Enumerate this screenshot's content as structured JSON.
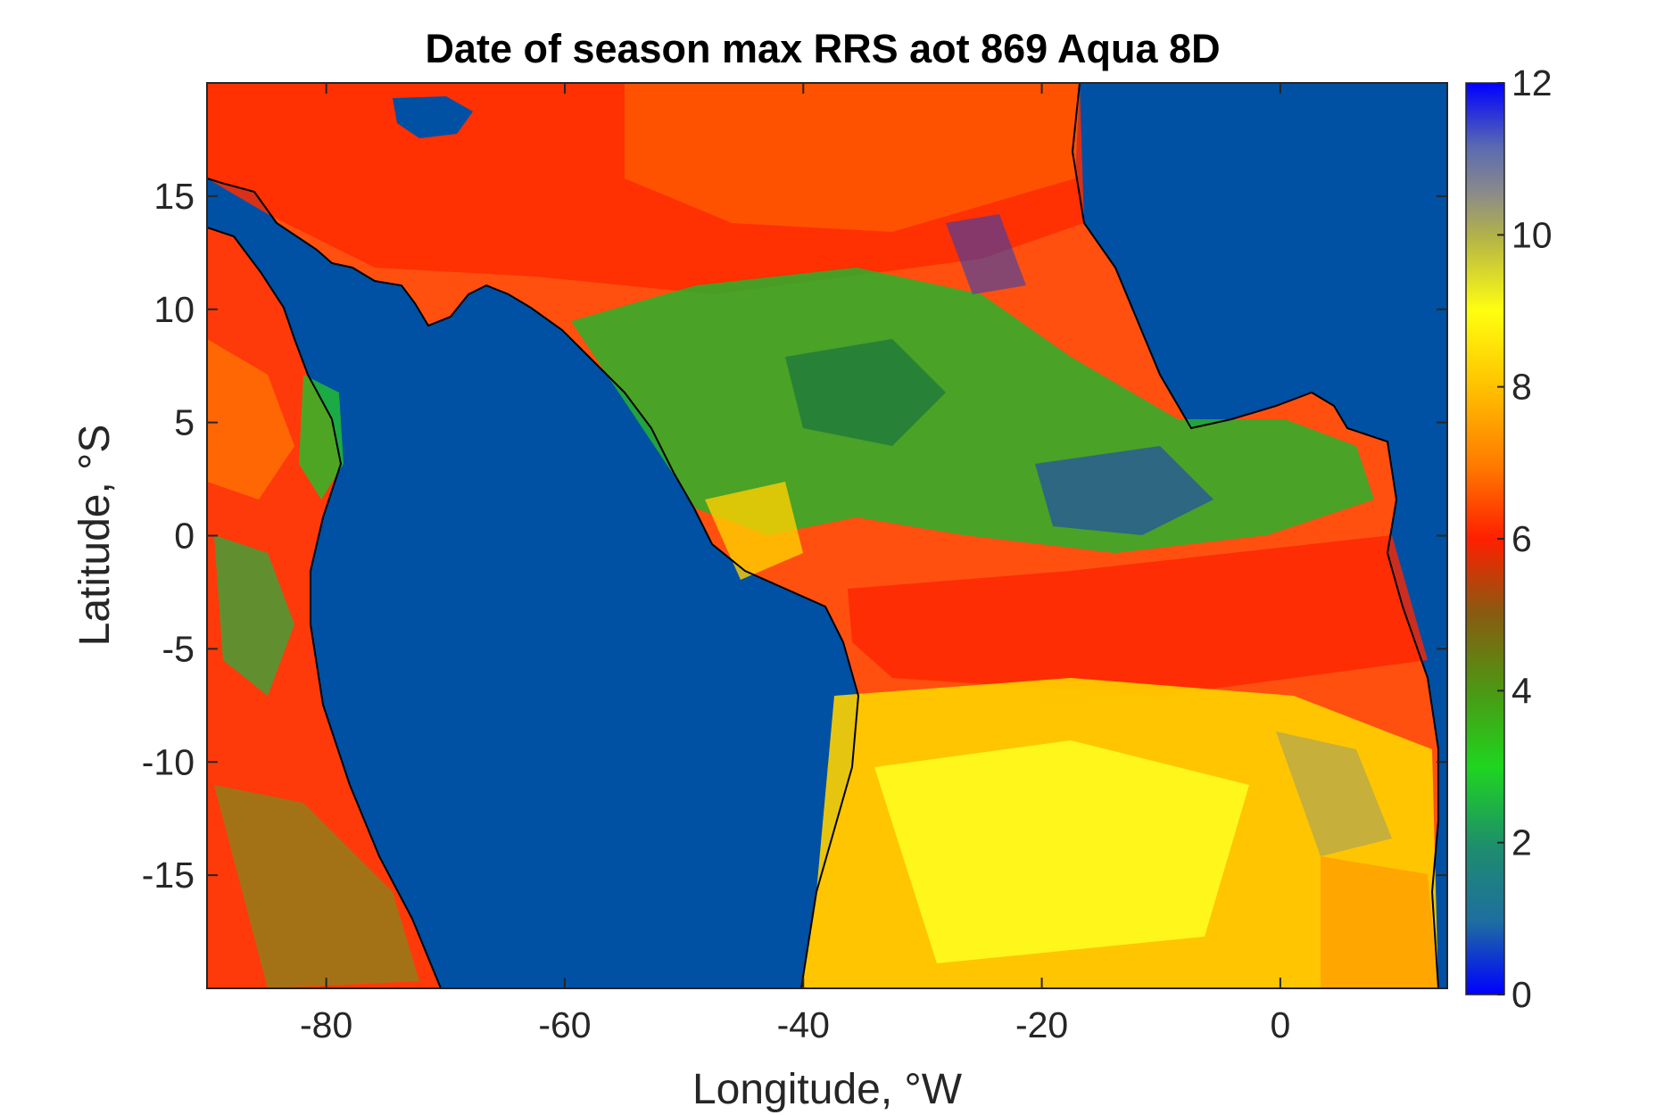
{
  "chart_data": {
    "type": "heatmap",
    "title": "Date of season max RRS aot 869 Aqua 8D",
    "xlabel": "Longitude, °W",
    "ylabel": "Latitude, °S",
    "xlim": [
      -90,
      14
    ],
    "ylim": [
      -20,
      20
    ],
    "x_ticks": [
      -80,
      -60,
      -40,
      -20,
      0
    ],
    "y_ticks": [
      15,
      10,
      5,
      0,
      -5,
      -10,
      -15
    ],
    "x_tick_labels": [
      "-80",
      "-60",
      "-40",
      "-20",
      "0"
    ],
    "y_tick_labels": [
      "15",
      "10",
      "5",
      "0",
      "-5",
      "-10",
      "-15"
    ],
    "colorbar": {
      "range": [
        0,
        12
      ],
      "ticks": [
        0,
        2,
        4,
        6,
        8,
        10,
        12
      ],
      "tick_labels": [
        "0",
        "2",
        "4",
        "6",
        "8",
        "10",
        "12"
      ],
      "colors": [
        "#0000ff",
        "#1e8c8c",
        "#1fd51f",
        "#4a9a14",
        "#8a5a10",
        "#ff1f00",
        "#ff7a00",
        "#ffd700",
        "#ffff10",
        "#b4b446",
        "#8a8a8a",
        "#5a6ab0",
        "#0000ff"
      ]
    },
    "ocean_color": "#0050a4",
    "coastline_color": "#000000"
  }
}
